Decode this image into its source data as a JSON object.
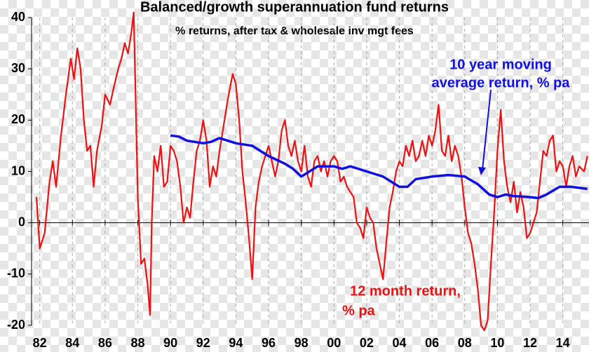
{
  "chart_data": {
    "type": "line",
    "title": "Balanced/growth superannuation fund returns",
    "subtitle": "% returns, after tax & wholesale inv mgt fees",
    "annotations": [
      {
        "lines": [
          "10 year moving",
          "average return, % pa"
        ],
        "color": "#1010e0"
      },
      {
        "lines": [
          "12 month return,",
          "% pa"
        ],
        "color": "#ee1111"
      }
    ],
    "xlim": [
      1981.5,
      2015.6
    ],
    "ylim": [
      -20,
      40
    ],
    "xticks": [
      {
        "value": 1982,
        "label": "82"
      },
      {
        "value": 1984,
        "label": "84"
      },
      {
        "value": 1986,
        "label": "86"
      },
      {
        "value": 1988,
        "label": "88"
      },
      {
        "value": 1990,
        "label": "90"
      },
      {
        "value": 1992,
        "label": "92"
      },
      {
        "value": 1994,
        "label": "94"
      },
      {
        "value": 1996,
        "label": "96"
      },
      {
        "value": 1998,
        "label": "98"
      },
      {
        "value": 2000,
        "label": "00"
      },
      {
        "value": 2002,
        "label": "02"
      },
      {
        "value": 2004,
        "label": "04"
      },
      {
        "value": 2006,
        "label": "06"
      },
      {
        "value": 2008,
        "label": "08"
      },
      {
        "value": 2010,
        "label": "10"
      },
      {
        "value": 2012,
        "label": "12"
      },
      {
        "value": 2014,
        "label": "14"
      }
    ],
    "yticks": [
      -20,
      -10,
      0,
      10,
      20,
      30,
      40
    ],
    "grid": true,
    "series": [
      {
        "name": "12 month return, % pa",
        "color": "#ee1111",
        "x": [
          1981.8,
          1982.0,
          1982.3,
          1982.6,
          1982.8,
          1983.0,
          1983.3,
          1983.6,
          1983.9,
          1984.1,
          1984.3,
          1984.5,
          1984.7,
          1984.9,
          1985.1,
          1985.3,
          1985.5,
          1985.8,
          1986.0,
          1986.3,
          1986.5,
          1986.8,
          1987.0,
          1987.2,
          1987.4,
          1987.6,
          1987.75,
          1987.85,
          1988.0,
          1988.2,
          1988.4,
          1988.6,
          1988.75,
          1988.85,
          1989.0,
          1989.2,
          1989.4,
          1989.6,
          1989.8,
          1990.0,
          1990.2,
          1990.4,
          1990.6,
          1990.8,
          1991.0,
          1991.2,
          1991.4,
          1991.6,
          1991.8,
          1992.0,
          1992.2,
          1992.4,
          1992.6,
          1992.8,
          1993.0,
          1993.2,
          1993.5,
          1993.8,
          1994.0,
          1994.2,
          1994.4,
          1994.6,
          1994.8,
          1995.0,
          1995.2,
          1995.4,
          1995.6,
          1995.8,
          1996.0,
          1996.2,
          1996.4,
          1996.6,
          1996.8,
          1997.0,
          1997.2,
          1997.4,
          1997.6,
          1997.8,
          1998.0,
          1998.2,
          1998.4,
          1998.6,
          1998.8,
          1999.0,
          1999.2,
          1999.4,
          1999.6,
          1999.8,
          2000.0,
          2000.2,
          2000.4,
          2000.6,
          2000.8,
          2001.0,
          2001.2,
          2001.4,
          2001.6,
          2001.8,
          2002.0,
          2002.2,
          2002.4,
          2002.6,
          2002.8,
          2003.0,
          2003.2,
          2003.4,
          2003.6,
          2003.8,
          2004.0,
          2004.2,
          2004.4,
          2004.6,
          2004.8,
          2005.0,
          2005.2,
          2005.4,
          2005.6,
          2005.8,
          2006.0,
          2006.2,
          2006.4,
          2006.6,
          2006.8,
          2007.0,
          2007.2,
          2007.4,
          2007.6,
          2007.8,
          2008.0,
          2008.2,
          2008.4,
          2008.6,
          2008.8,
          2009.0,
          2009.2,
          2009.4,
          2009.6,
          2009.8,
          2010.0,
          2010.2,
          2010.4,
          2010.6,
          2010.8,
          2011.0,
          2011.2,
          2011.4,
          2011.6,
          2011.8,
          2012.0,
          2012.2,
          2012.4,
          2012.6,
          2012.8,
          2013.0,
          2013.2,
          2013.4,
          2013.6,
          2013.8,
          2014.0,
          2014.2,
          2014.4,
          2014.6,
          2014.8,
          2015.0,
          2015.3,
          2015.5
        ],
        "values": [
          5,
          -5,
          -2,
          8,
          12,
          7,
          17,
          25,
          32,
          28,
          34,
          30,
          20,
          14,
          15,
          7,
          14,
          19,
          25,
          23,
          26,
          30,
          32,
          35,
          33,
          37,
          41,
          27,
          5,
          -8,
          -7,
          -12,
          -18,
          0,
          13,
          10,
          15,
          7,
          8,
          15,
          14,
          12,
          7,
          0,
          3,
          1,
          8,
          14,
          16,
          20,
          16,
          7,
          11,
          9,
          14,
          18,
          24,
          29,
          27,
          20,
          10,
          4,
          -3,
          -11,
          3,
          8,
          11,
          13,
          15,
          12,
          9,
          12,
          18,
          20,
          15,
          13,
          16,
          12,
          10,
          15,
          9,
          7,
          12,
          13,
          10,
          12,
          9,
          12,
          13,
          12,
          8,
          9,
          7,
          6,
          5,
          0,
          -1,
          -3,
          3,
          1,
          0,
          -5,
          -8,
          -11,
          -4,
          3,
          6,
          10,
          12,
          11,
          15,
          13,
          16,
          12,
          13,
          16,
          13,
          17,
          15,
          18,
          23,
          14,
          13,
          17,
          12,
          15,
          13,
          9,
          3,
          -2,
          -4,
          -8,
          -13,
          -20,
          -21,
          -19,
          -8,
          2,
          14,
          22,
          12,
          7,
          4,
          8,
          2,
          6,
          3,
          -3,
          -2,
          0,
          2,
          8,
          14,
          13,
          16,
          17,
          10,
          12,
          11,
          7,
          11,
          13,
          9,
          11,
          10,
          13
        ]
      },
      {
        "name": "10 year moving average return, % pa",
        "color": "#1010e0",
        "x": [
          1990.0,
          1990.5,
          1991.0,
          1992.0,
          1992.5,
          1993.0,
          1994.0,
          1995.0,
          1996.0,
          1997.0,
          1997.5,
          1998.0,
          1998.5,
          1999.0,
          2000.0,
          2000.5,
          2001.0,
          2002.0,
          2003.0,
          2004.0,
          2004.5,
          2005.0,
          2006.0,
          2007.0,
          2008.0,
          2008.8,
          2009.5,
          2010.0,
          2010.5,
          2011.0,
          2012.0,
          2012.5,
          2013.0,
          2013.8,
          2014.5,
          2015.0,
          2015.5
        ],
        "values": [
          17,
          16.8,
          16,
          15.5,
          15.8,
          16.5,
          15.5,
          15,
          13,
          11.5,
          10.5,
          9,
          10,
          11,
          11,
          10.5,
          11,
          10,
          9,
          7,
          7,
          8.5,
          9,
          9.3,
          9,
          7.5,
          5.5,
          5,
          5.5,
          5.2,
          5,
          4.8,
          5.5,
          7,
          7,
          6.8,
          6.6
        ]
      }
    ]
  }
}
